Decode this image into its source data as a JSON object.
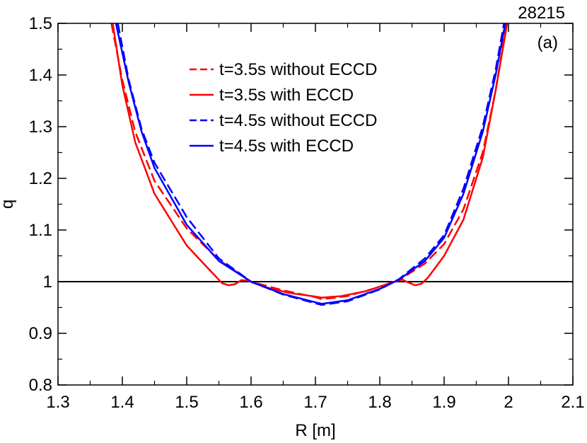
{
  "chart_data": {
    "type": "line",
    "title": "",
    "xlabel": "R [m]",
    "ylabel": "q",
    "xlim": [
      1.3,
      2.1
    ],
    "ylim": [
      0.8,
      1.5
    ],
    "xticks": [
      1.3,
      1.4,
      1.5,
      1.6,
      1.7,
      1.8,
      1.9,
      2.0,
      2.1
    ],
    "xtick_labels": [
      "1.3",
      "1.4",
      "1.5",
      "1.6",
      "1.7",
      "1.8",
      "1.9",
      "2",
      "2.1"
    ],
    "yticks": [
      0.8,
      0.9,
      1.0,
      1.1,
      1.2,
      1.3,
      1.4,
      1.5
    ],
    "ytick_labels": [
      "0.8",
      "0.9",
      "1",
      "1.1",
      "1.2",
      "1.3",
      "1.4",
      "1.5"
    ],
    "annotations": {
      "shot": "28215",
      "panel": "(a)"
    },
    "reference_line": {
      "y": 1.0,
      "color": "#000000"
    },
    "legend_position": "top-center",
    "series": [
      {
        "name": "t=3.5s without ECCD",
        "color": "#ff0000",
        "dash": "dashed",
        "points": [
          [
            1.383,
            1.5
          ],
          [
            1.4,
            1.39
          ],
          [
            1.42,
            1.29
          ],
          [
            1.45,
            1.195
          ],
          [
            1.5,
            1.103
          ],
          [
            1.55,
            1.042
          ],
          [
            1.6,
            1.0
          ],
          [
            1.65,
            0.983
          ],
          [
            1.7,
            0.97
          ],
          [
            1.71,
            0.966
          ],
          [
            1.75,
            0.972
          ],
          [
            1.8,
            0.99
          ],
          [
            1.83,
            1.003
          ],
          [
            1.87,
            1.035
          ],
          [
            1.9,
            1.073
          ],
          [
            1.93,
            1.14
          ],
          [
            1.96,
            1.25
          ],
          [
            1.98,
            1.37
          ],
          [
            1.997,
            1.5
          ]
        ]
      },
      {
        "name": "t=3.5s with ECCD",
        "color": "#ff0000",
        "dash": "solid",
        "points": [
          [
            1.385,
            1.5
          ],
          [
            1.4,
            1.38
          ],
          [
            1.42,
            1.27
          ],
          [
            1.45,
            1.17
          ],
          [
            1.5,
            1.07
          ],
          [
            1.53,
            1.03
          ],
          [
            1.555,
            0.997
          ],
          [
            1.565,
            0.993
          ],
          [
            1.575,
            0.995
          ],
          [
            1.585,
            1.003
          ],
          [
            1.595,
            1.002
          ],
          [
            1.62,
            0.99
          ],
          [
            1.66,
            0.978
          ],
          [
            1.7,
            0.971
          ],
          [
            1.71,
            0.969
          ],
          [
            1.74,
            0.972
          ],
          [
            1.78,
            0.982
          ],
          [
            1.82,
            0.999
          ],
          [
            1.835,
            1.004
          ],
          [
            1.845,
            0.998
          ],
          [
            1.855,
            0.993
          ],
          [
            1.865,
            0.996
          ],
          [
            1.875,
            1.008
          ],
          [
            1.9,
            1.05
          ],
          [
            1.93,
            1.12
          ],
          [
            1.96,
            1.24
          ],
          [
            1.98,
            1.37
          ],
          [
            1.998,
            1.5
          ]
        ]
      },
      {
        "name": "t=4.5s without ECCD",
        "color": "#0000ff",
        "dash": "dashed",
        "points": [
          [
            1.393,
            1.5
          ],
          [
            1.41,
            1.39
          ],
          [
            1.43,
            1.295
          ],
          [
            1.45,
            1.23
          ],
          [
            1.5,
            1.125
          ],
          [
            1.55,
            1.045
          ],
          [
            1.6,
            1.0
          ],
          [
            1.65,
            0.975
          ],
          [
            1.7,
            0.958
          ],
          [
            1.71,
            0.955
          ],
          [
            1.75,
            0.962
          ],
          [
            1.8,
            0.985
          ],
          [
            1.83,
            1.005
          ],
          [
            1.87,
            1.045
          ],
          [
            1.9,
            1.09
          ],
          [
            1.93,
            1.18
          ],
          [
            1.96,
            1.3
          ],
          [
            1.98,
            1.41
          ],
          [
            1.993,
            1.5
          ]
        ]
      },
      {
        "name": "t=4.5s with ECCD",
        "color": "#0000ff",
        "dash": "solid",
        "points": [
          [
            1.39,
            1.5
          ],
          [
            1.41,
            1.385
          ],
          [
            1.43,
            1.29
          ],
          [
            1.45,
            1.22
          ],
          [
            1.5,
            1.11
          ],
          [
            1.55,
            1.04
          ],
          [
            1.6,
            1.0
          ],
          [
            1.65,
            0.976
          ],
          [
            1.7,
            0.96
          ],
          [
            1.71,
            0.957
          ],
          [
            1.75,
            0.964
          ],
          [
            1.8,
            0.986
          ],
          [
            1.83,
            1.004
          ],
          [
            1.87,
            1.04
          ],
          [
            1.9,
            1.085
          ],
          [
            1.93,
            1.17
          ],
          [
            1.96,
            1.29
          ],
          [
            1.98,
            1.4
          ],
          [
            1.995,
            1.5
          ]
        ]
      }
    ]
  }
}
